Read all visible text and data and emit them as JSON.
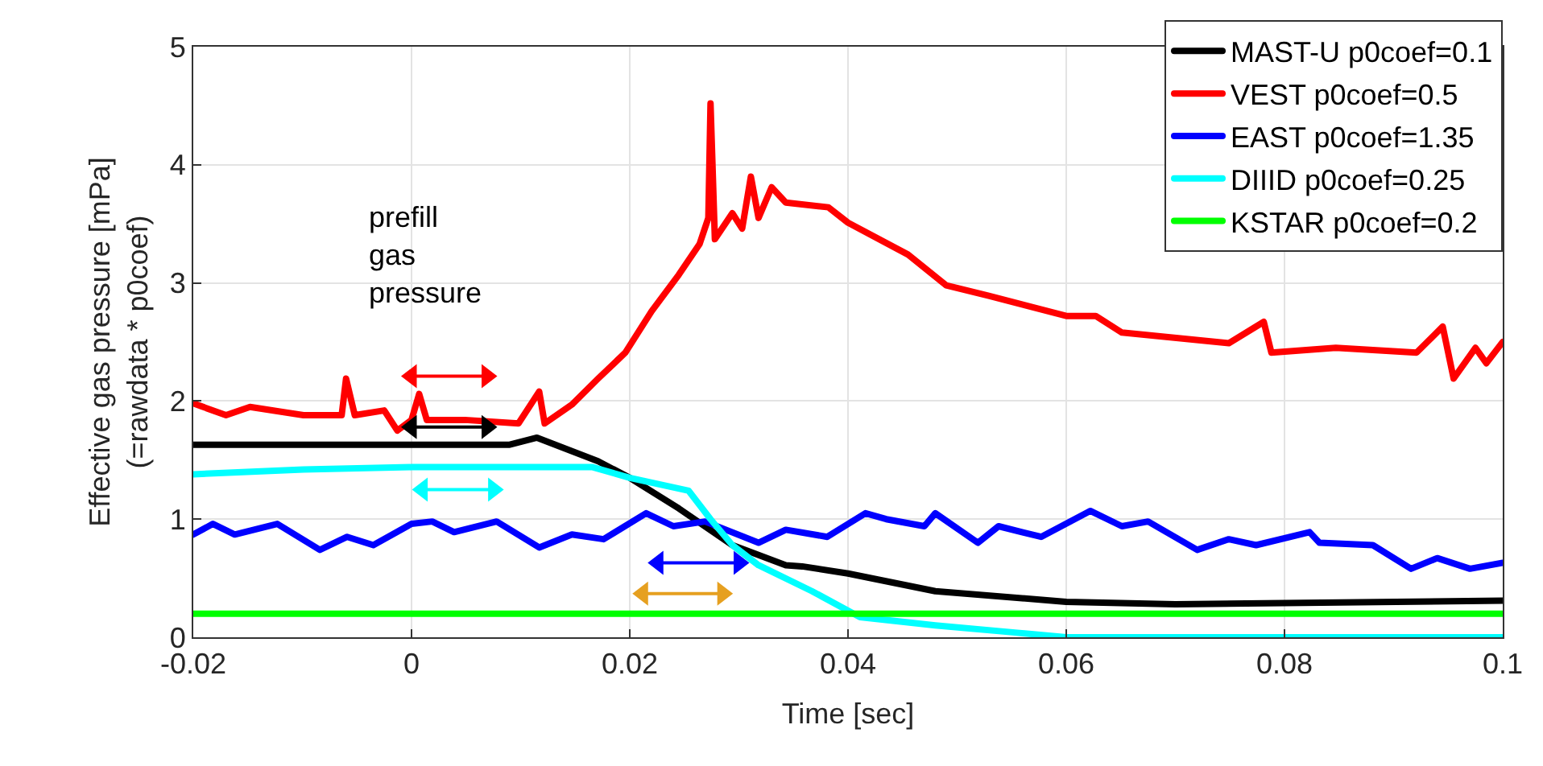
{
  "chart_data": {
    "type": "line",
    "xlabel": "Time [sec]",
    "ylabel": "Effective gas pressure [mPa]\n(=rawdata * p0coef)",
    "xlim": [
      -0.02,
      0.1
    ],
    "xticks": [
      -0.02,
      0,
      0.02,
      0.04,
      0.06,
      0.08,
      0.1
    ],
    "ylim": [
      0,
      5
    ],
    "yticks": [
      0,
      1,
      2,
      3,
      4,
      5
    ],
    "grid": true,
    "legend": "top right",
    "marker": "none",
    "line_style": "solid",
    "annotations": [
      "prefill\ngas\npressure"
    ],
    "series": [
      {
        "name": "MAST-U p0coef=0.1",
        "color": "#000000",
        "x": [
          -0.02,
          0.009,
          0.0115,
          0.0171,
          0.02,
          0.0245,
          0.0294,
          0.0343,
          0.0358,
          0.04,
          0.048,
          0.06,
          0.07,
          0.08,
          0.1
        ],
        "values": [
          1.63,
          1.63,
          1.69,
          1.49,
          1.35,
          1.09,
          0.78,
          0.61,
          0.6,
          0.54,
          0.39,
          0.3,
          0.28,
          0.29,
          0.31
        ]
      },
      {
        "name": "VEST p0coef=0.5",
        "color": "#ff0000",
        "x": [
          -0.02,
          -0.017,
          -0.0148,
          -0.0099,
          -0.0064,
          -0.006,
          -0.0052,
          -0.0025,
          -0.0013,
          0,
          0.0007,
          0.0014,
          0.0049,
          0.0098,
          0.0117,
          0.0122,
          0.0147,
          0.0171,
          0.0196,
          0.022,
          0.0245,
          0.0264,
          0.0272,
          0.0274,
          0.0278,
          0.0294,
          0.0303,
          0.0311,
          0.0318,
          0.033,
          0.0343,
          0.0382,
          0.04,
          0.0455,
          0.049,
          0.0529,
          0.06,
          0.0627,
          0.0651,
          0.0749,
          0.0781,
          0.0788,
          0.0847,
          0.0921,
          0.0945,
          0.0955,
          0.0975,
          0.0985,
          0.1
        ],
        "values": [
          1.98,
          1.88,
          1.95,
          1.88,
          1.88,
          2.19,
          1.88,
          1.92,
          1.75,
          1.84,
          2.06,
          1.84,
          1.84,
          1.81,
          2.08,
          1.81,
          1.97,
          2.19,
          2.41,
          2.76,
          3.07,
          3.33,
          3.55,
          4.52,
          3.37,
          3.59,
          3.46,
          3.9,
          3.55,
          3.81,
          3.68,
          3.64,
          3.51,
          3.24,
          2.98,
          2.89,
          2.72,
          2.72,
          2.58,
          2.49,
          2.67,
          2.41,
          2.45,
          2.41,
          2.63,
          2.19,
          2.45,
          2.32,
          2.5
        ]
      },
      {
        "name": "EAST p0coef=1.35",
        "color": "#0000ff",
        "x": [
          -0.02,
          -0.0182,
          -0.0162,
          -0.0123,
          -0.0084,
          -0.0059,
          -0.0035,
          0,
          0.0019,
          0.0039,
          0.0078,
          0.0117,
          0.0147,
          0.0176,
          0.0215,
          0.024,
          0.0269,
          0.0318,
          0.0343,
          0.0381,
          0.0416,
          0.0435,
          0.047,
          0.048,
          0.0519,
          0.0538,
          0.0577,
          0.0622,
          0.0651,
          0.0675,
          0.072,
          0.0749,
          0.0774,
          0.0823,
          0.0832,
          0.0881,
          0.0916,
          0.094,
          0.097,
          0.1
        ],
        "values": [
          0.87,
          0.96,
          0.87,
          0.96,
          0.74,
          0.85,
          0.78,
          0.96,
          0.98,
          0.89,
          0.98,
          0.76,
          0.87,
          0.83,
          1.05,
          0.94,
          0.98,
          0.8,
          0.91,
          0.85,
          1.05,
          1.0,
          0.94,
          1.05,
          0.8,
          0.94,
          0.85,
          1.07,
          0.94,
          0.98,
          0.74,
          0.83,
          0.78,
          0.89,
          0.8,
          0.78,
          0.58,
          0.67,
          0.58,
          0.63
        ]
      },
      {
        "name": "DIIID p0coef=0.25",
        "color": "#00ffff",
        "x": [
          -0.02,
          -0.0099,
          0,
          0.0166,
          0.02,
          0.0254,
          0.0274,
          0.0294,
          0.0318,
          0.0367,
          0.0411,
          0.048,
          0.0553,
          0.06,
          0.1
        ],
        "values": [
          1.38,
          1.42,
          1.44,
          1.44,
          1.35,
          1.24,
          1.0,
          0.78,
          0.61,
          0.39,
          0.17,
          0.1,
          0.04,
          0,
          0
        ]
      },
      {
        "name": "KSTAR p0coef=0.2",
        "color": "#00ff00",
        "x": [
          -0.02,
          0.1
        ],
        "values": [
          0.2,
          0.2
        ]
      },
      {
        "color": "#ff0000",
        "x": [
          0,
          0.0069
        ],
        "values": [
          2.21,
          2.21
        ],
        "marker": "triangle"
      },
      {
        "color": "#000000",
        "x": [
          0,
          0.0069
        ],
        "values": [
          1.78,
          1.78
        ],
        "marker": "triangle"
      },
      {
        "color": "#00ffff",
        "x": [
          0.001,
          0.0075
        ],
        "values": [
          1.25,
          1.25
        ],
        "marker": "triangle"
      },
      {
        "color": "#0000ff",
        "x": [
          0.0226,
          0.03
        ],
        "values": [
          0.63,
          0.63
        ],
        "marker": "triangle"
      },
      {
        "color": "#e6a020",
        "x": [
          0.0212,
          0.0285
        ],
        "values": [
          0.37,
          0.37
        ],
        "marker": "triangle"
      }
    ]
  }
}
